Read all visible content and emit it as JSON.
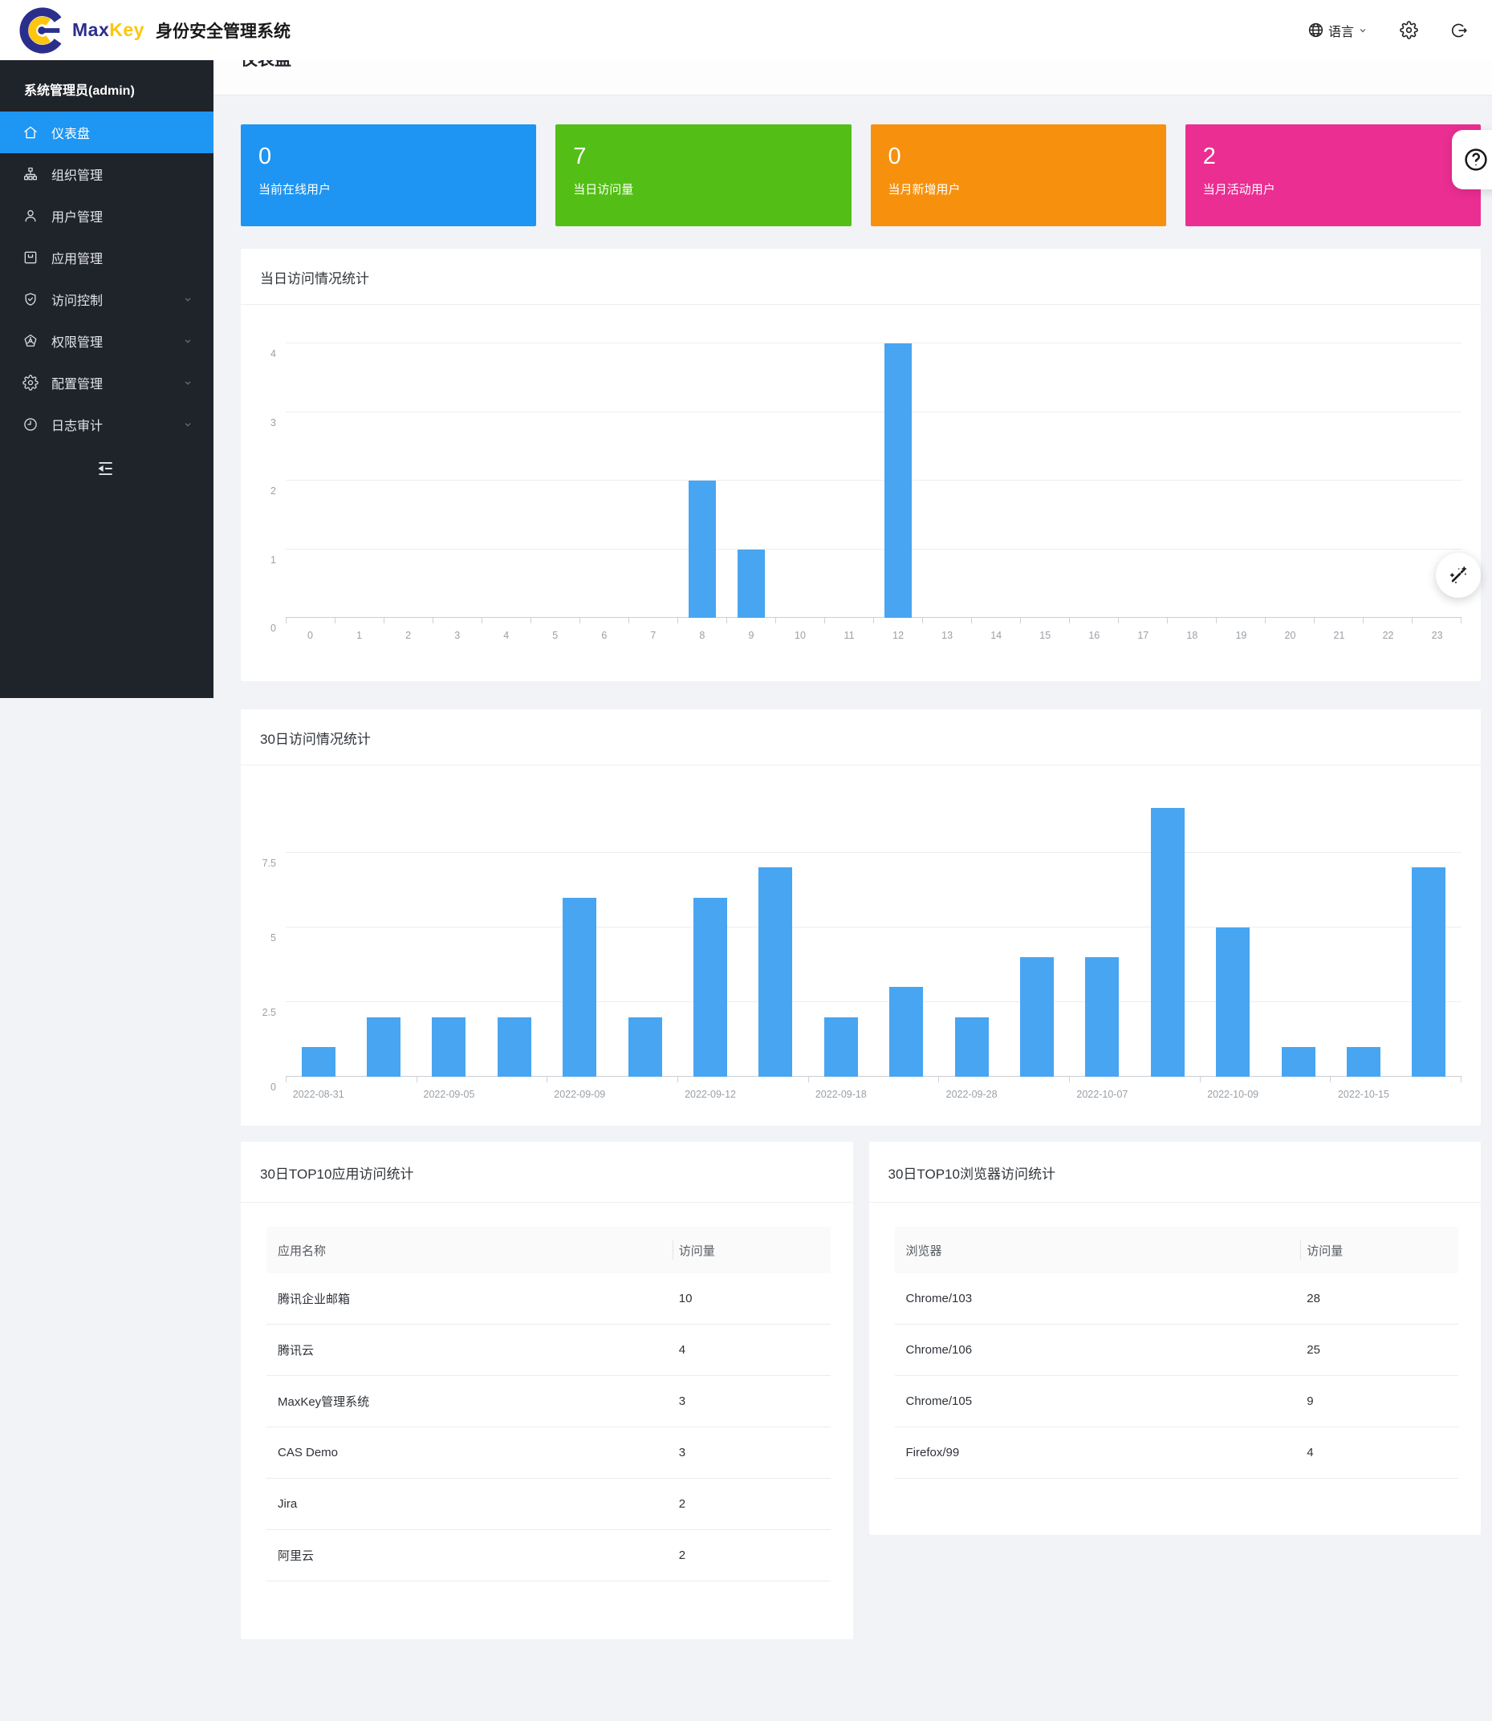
{
  "header": {
    "brand_max": "Max",
    "brand_key": "Key",
    "brand_suffix": "身份安全管理系统",
    "language_label": "语言"
  },
  "sidebar": {
    "user": "系统管理员(admin)",
    "items": [
      {
        "id": "dashboard",
        "label": "仪表盘",
        "icon": "home-icon",
        "active": true,
        "children": false
      },
      {
        "id": "org",
        "label": "组织管理",
        "icon": "org-icon",
        "active": false,
        "children": false
      },
      {
        "id": "users",
        "label": "用户管理",
        "icon": "user-icon",
        "active": false,
        "children": false
      },
      {
        "id": "apps",
        "label": "应用管理",
        "icon": "app-icon",
        "active": false,
        "children": false
      },
      {
        "id": "access",
        "label": "访问控制",
        "icon": "shield-icon",
        "active": false,
        "children": true
      },
      {
        "id": "perm",
        "label": "权限管理",
        "icon": "pentagon-icon",
        "active": false,
        "children": true
      },
      {
        "id": "config",
        "label": "配置管理",
        "icon": "gear-icon",
        "active": false,
        "children": true
      },
      {
        "id": "audit",
        "label": "日志审计",
        "icon": "clock-icon",
        "active": false,
        "children": true
      }
    ]
  },
  "breadcrumb": {
    "home": "home",
    "separator": "/",
    "current": "仪表盘"
  },
  "page": {
    "title": "仪表盘"
  },
  "stat_cards": [
    {
      "value": "0",
      "label": "当前在线用户",
      "color": "#1e95f2"
    },
    {
      "value": "7",
      "label": "当日访问量",
      "color": "#53be16"
    },
    {
      "value": "0",
      "label": "当月新增用户",
      "color": "#f7910d"
    },
    {
      "value": "2",
      "label": "当月活动用户",
      "color": "#eb2e91"
    }
  ],
  "chart_data": [
    {
      "type": "bar",
      "title": "当日访问情况统计",
      "x": [
        "0",
        "1",
        "2",
        "3",
        "4",
        "5",
        "6",
        "7",
        "8",
        "9",
        "10",
        "11",
        "12",
        "13",
        "14",
        "15",
        "16",
        "17",
        "18",
        "19",
        "20",
        "21",
        "22",
        "23"
      ],
      "values": [
        0,
        0,
        0,
        0,
        0,
        0,
        0,
        0,
        2,
        1,
        0,
        0,
        4,
        0,
        0,
        0,
        0,
        0,
        0,
        0,
        0,
        0,
        0,
        0
      ],
      "yticks": [
        "0",
        "1",
        "2",
        "3",
        "4"
      ],
      "ytick_values": [
        0,
        1,
        2,
        3,
        4
      ],
      "ylim": [
        0,
        4
      ],
      "xlabel": "",
      "ylabel": "",
      "grid": true,
      "legend": "none",
      "bar_color": "#48a5f2"
    },
    {
      "type": "bar",
      "title": "30日访问情况统计",
      "x": [
        "2022-08-31",
        "",
        "2022-09-05",
        "",
        "2022-09-09",
        "",
        "2022-09-12",
        "",
        "2022-09-18",
        "",
        "2022-09-28",
        "",
        "2022-10-07",
        "",
        "2022-10-09",
        "",
        "2022-10-15",
        ""
      ],
      "values": [
        1,
        2,
        2,
        2,
        6,
        2,
        6,
        7,
        2,
        3,
        2,
        4,
        4,
        9,
        5,
        1,
        1,
        7
      ],
      "yticks": [
        "0",
        "2.5",
        "5",
        "7.5"
      ],
      "ytick_values": [
        0,
        2.5,
        5,
        7.5
      ],
      "ylim": [
        0,
        9.4
      ],
      "xlabel": "",
      "ylabel": "",
      "grid": true,
      "legend": "none",
      "bar_color": "#48a5f2"
    }
  ],
  "tables": [
    {
      "title": "30日TOP10应用访问统计",
      "columns": [
        "应用名称",
        "访问量"
      ],
      "rows": [
        [
          "腾讯企业邮箱",
          "10"
        ],
        [
          "腾讯云",
          "4"
        ],
        [
          "MaxKey管理系统",
          "3"
        ],
        [
          "CAS Demo",
          "3"
        ],
        [
          "Jira",
          "2"
        ],
        [
          "阿里云",
          "2"
        ]
      ]
    },
    {
      "title": "30日TOP10浏览器访问统计",
      "columns": [
        "浏览器",
        "访问量"
      ],
      "rows": [
        [
          "Chrome/103",
          "28"
        ],
        [
          "Chrome/106",
          "25"
        ],
        [
          "Chrome/105",
          "9"
        ],
        [
          "Firefox/99",
          "4"
        ]
      ]
    }
  ],
  "floating": {
    "help_glyph": "?"
  }
}
